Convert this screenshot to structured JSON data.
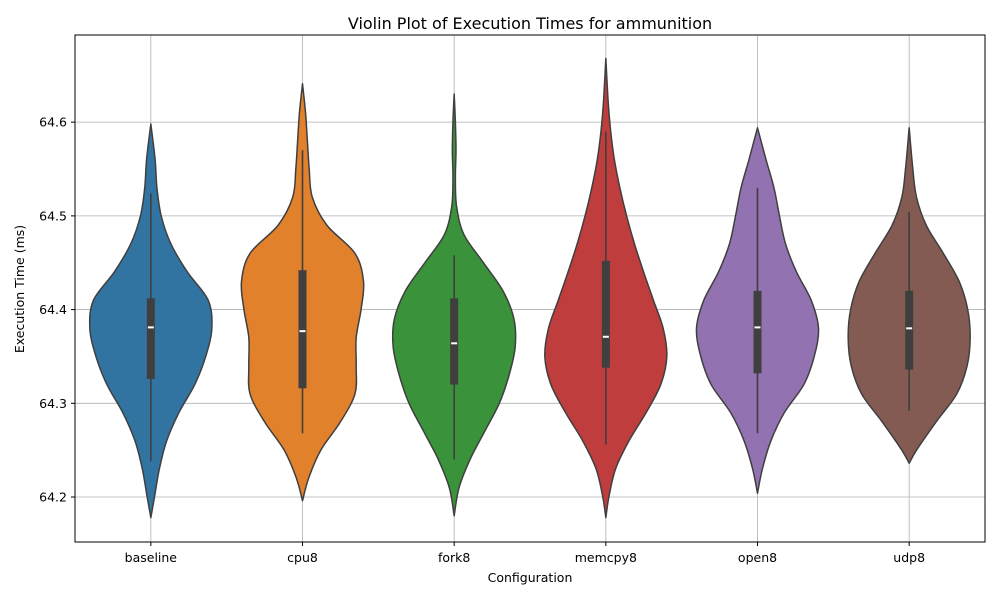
{
  "chart_data": {
    "type": "violin",
    "title": "Violin Plot of Execution Times for ammunition",
    "xlabel": "Configuration",
    "ylabel": "Execution Time (ms)",
    "ylim": [
      64.152,
      64.693
    ],
    "yticks": [
      "64.2",
      "64.3",
      "64.4",
      "64.5",
      "64.6"
    ],
    "grid": true,
    "categories": [
      "baseline",
      "cpu8",
      "fork8",
      "memcpy8",
      "open8",
      "udp8"
    ],
    "colors": [
      "#3274a1",
      "#e1812c",
      "#3a923a",
      "#c03d3e",
      "#9372b2",
      "#845b53"
    ],
    "series": [
      {
        "min": 64.178,
        "max": 64.598,
        "whisker_low": 64.238,
        "whisker_high": 64.524,
        "q1": 64.326,
        "median": 64.381,
        "q3": 64.412,
        "profile": [
          [
            64.178,
            0.0
          ],
          [
            64.2,
            0.06
          ],
          [
            64.23,
            0.14
          ],
          [
            64.26,
            0.26
          ],
          [
            64.29,
            0.46
          ],
          [
            64.32,
            0.72
          ],
          [
            64.35,
            0.9
          ],
          [
            64.38,
            1.0
          ],
          [
            64.41,
            0.94
          ],
          [
            64.44,
            0.6
          ],
          [
            64.47,
            0.33
          ],
          [
            64.5,
            0.17
          ],
          [
            64.53,
            0.1
          ],
          [
            64.56,
            0.07
          ],
          [
            64.598,
            0.0
          ]
        ]
      },
      {
        "min": 64.196,
        "max": 64.641,
        "whisker_low": 64.268,
        "whisker_high": 64.57,
        "q1": 64.316,
        "median": 64.377,
        "q3": 64.442,
        "profile": [
          [
            64.196,
            0.0
          ],
          [
            64.22,
            0.1
          ],
          [
            64.25,
            0.3
          ],
          [
            64.28,
            0.62
          ],
          [
            64.31,
            0.86
          ],
          [
            64.34,
            0.88
          ],
          [
            64.37,
            0.88
          ],
          [
            64.4,
            0.96
          ],
          [
            64.43,
            1.0
          ],
          [
            64.46,
            0.86
          ],
          [
            64.49,
            0.4
          ],
          [
            64.52,
            0.16
          ],
          [
            64.55,
            0.11
          ],
          [
            64.58,
            0.08
          ],
          [
            64.61,
            0.05
          ],
          [
            64.641,
            0.0
          ]
        ]
      },
      {
        "min": 64.18,
        "max": 64.63,
        "whisker_low": 64.24,
        "whisker_high": 64.458,
        "q1": 64.32,
        "median": 64.364,
        "q3": 64.412,
        "profile": [
          [
            64.18,
            0.0
          ],
          [
            64.21,
            0.08
          ],
          [
            64.24,
            0.26
          ],
          [
            64.27,
            0.5
          ],
          [
            64.3,
            0.74
          ],
          [
            64.33,
            0.9
          ],
          [
            64.36,
            1.0
          ],
          [
            64.39,
            0.98
          ],
          [
            64.42,
            0.8
          ],
          [
            64.45,
            0.48
          ],
          [
            64.48,
            0.16
          ],
          [
            64.51,
            0.04
          ],
          [
            64.54,
            0.02
          ],
          [
            64.57,
            0.03
          ],
          [
            64.6,
            0.02
          ],
          [
            64.63,
            0.0
          ]
        ]
      },
      {
        "min": 64.178,
        "max": 64.668,
        "whisker_low": 64.256,
        "whisker_high": 64.59,
        "q1": 64.338,
        "median": 64.371,
        "q3": 64.452,
        "profile": [
          [
            64.178,
            0.0
          ],
          [
            64.2,
            0.05
          ],
          [
            64.23,
            0.16
          ],
          [
            64.26,
            0.38
          ],
          [
            64.29,
            0.66
          ],
          [
            64.32,
            0.9
          ],
          [
            64.35,
            1.0
          ],
          [
            64.38,
            0.94
          ],
          [
            64.41,
            0.78
          ],
          [
            64.44,
            0.62
          ],
          [
            64.47,
            0.47
          ],
          [
            64.5,
            0.34
          ],
          [
            64.53,
            0.23
          ],
          [
            64.56,
            0.14
          ],
          [
            64.59,
            0.08
          ],
          [
            64.62,
            0.04
          ],
          [
            64.668,
            0.0
          ]
        ]
      },
      {
        "min": 64.204,
        "max": 64.594,
        "whisker_low": 64.268,
        "whisker_high": 64.53,
        "q1": 64.332,
        "median": 64.381,
        "q3": 64.42,
        "profile": [
          [
            64.204,
            0.0
          ],
          [
            64.23,
            0.08
          ],
          [
            64.26,
            0.22
          ],
          [
            64.29,
            0.44
          ],
          [
            64.32,
            0.76
          ],
          [
            64.35,
            0.93
          ],
          [
            64.38,
            1.0
          ],
          [
            64.41,
            0.88
          ],
          [
            64.44,
            0.64
          ],
          [
            64.47,
            0.46
          ],
          [
            64.5,
            0.36
          ],
          [
            64.53,
            0.27
          ],
          [
            64.56,
            0.14
          ],
          [
            64.594,
            0.0
          ]
        ]
      },
      {
        "min": 64.236,
        "max": 64.594,
        "whisker_low": 64.292,
        "whisker_high": 64.504,
        "q1": 64.336,
        "median": 64.38,
        "q3": 64.42,
        "profile": [
          [
            64.236,
            0.0
          ],
          [
            64.25,
            0.12
          ],
          [
            64.28,
            0.44
          ],
          [
            64.31,
            0.78
          ],
          [
            64.34,
            0.95
          ],
          [
            64.37,
            1.0
          ],
          [
            64.4,
            0.96
          ],
          [
            64.43,
            0.82
          ],
          [
            64.46,
            0.56
          ],
          [
            64.49,
            0.28
          ],
          [
            64.52,
            0.12
          ],
          [
            64.55,
            0.06
          ],
          [
            64.594,
            0.0
          ]
        ]
      }
    ]
  }
}
